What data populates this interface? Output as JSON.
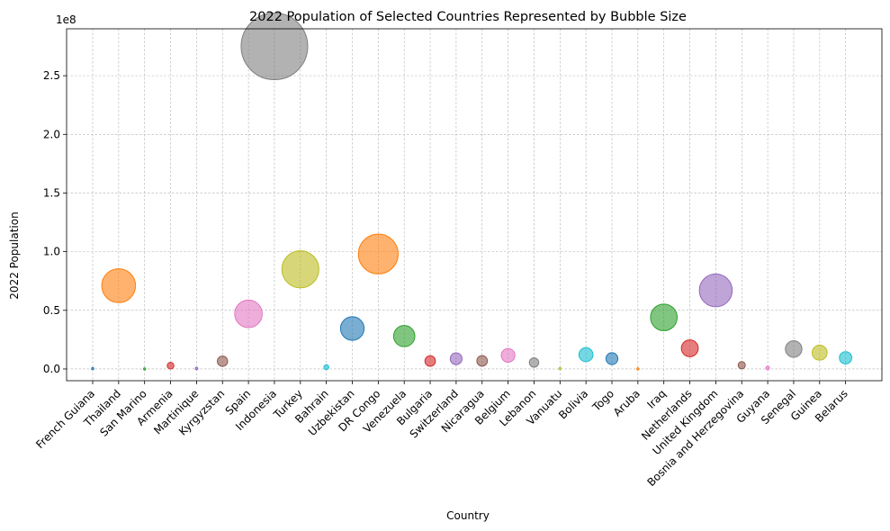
{
  "chart_data": {
    "type": "scatter",
    "title": "2022 Population of Selected Countries Represented by Bubble Size",
    "xlabel": "Country",
    "ylabel": "2022 Population",
    "y_offset_label": "1e8",
    "ylim": [
      -10000000,
      290000000
    ],
    "yticks": [
      0,
      50000000,
      100000000,
      150000000,
      200000000,
      250000000
    ],
    "ytick_labels": [
      "0.0",
      "0.5",
      "1.0",
      "1.5",
      "2.0",
      "2.5"
    ],
    "grid": true,
    "categories": [
      "French Guiana",
      "Thailand",
      "San Marino",
      "Armenia",
      "Martinique",
      "Kyrgyzstan",
      "Spain",
      "Indonesia",
      "Turkey",
      "Bahrain",
      "Uzbekistan",
      "DR Congo",
      "Venezuela",
      "Bulgaria",
      "Switzerland",
      "Nicaragua",
      "Belgium",
      "Lebanon",
      "Vanuatu",
      "Bolivia",
      "Togo",
      "Aruba",
      "Iraq",
      "Netherlands",
      "United Kingdom",
      "Bosnia and Herzegovina",
      "Guyana",
      "Senegal",
      "Guinea",
      "Belarus"
    ],
    "values": [
      300000,
      71000000,
      34000,
      2800000,
      370000,
      6600000,
      47000000,
      275000000,
      85000000,
      1500000,
      34500000,
      98000000,
      28000000,
      6800000,
      8700000,
      6900000,
      11600000,
      5500000,
      320000,
      12200000,
      8800000,
      106000,
      44000000,
      17600000,
      67000000,
      3200000,
      810000,
      17000000,
      13900000,
      9500000
    ],
    "colors": [
      "#1f77b4",
      "#ff7f0e",
      "#2ca02c",
      "#d62728",
      "#9467bd",
      "#8c564b",
      "#e377c2",
      "#7f7f7f",
      "#bcbd22",
      "#17becf",
      "#1f77b4",
      "#ff7f0e",
      "#2ca02c",
      "#d62728",
      "#9467bd",
      "#8c564b",
      "#e377c2",
      "#7f7f7f",
      "#bcbd22",
      "#17becf",
      "#1f77b4",
      "#ff7f0e",
      "#2ca02c",
      "#d62728",
      "#9467bd",
      "#8c564b",
      "#e377c2",
      "#7f7f7f",
      "#bcbd22",
      "#17becf"
    ]
  }
}
